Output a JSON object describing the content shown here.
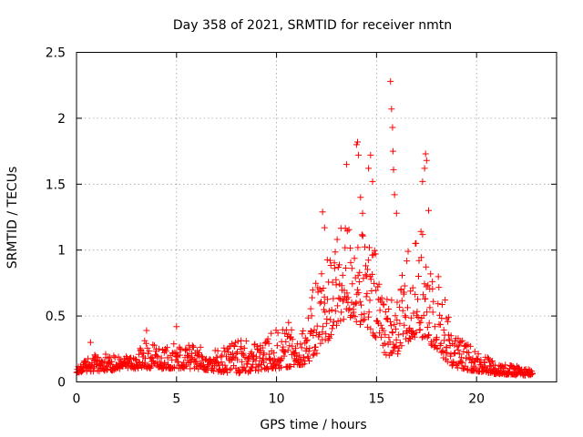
{
  "chart_data": {
    "type": "scatter",
    "title": "Day 358 of 2021, SRMTID for receiver nmtn",
    "xlabel": "GPS time / hours",
    "ylabel": "SRMTID / TECUs",
    "xlim": [
      0,
      24
    ],
    "ylim": [
      0,
      2.5
    ],
    "xticks": [
      0,
      5,
      10,
      15,
      20
    ],
    "xtick_labels": [
      "0",
      "5",
      "10",
      "15",
      "20"
    ],
    "yticks": [
      0,
      0.5,
      1,
      1.5,
      2,
      2.5
    ],
    "ytick_labels": [
      "0",
      "0.5",
      "1",
      "1.5",
      "2",
      "2.5"
    ],
    "grid": true,
    "marker": "+",
    "color": "#ff0000",
    "series": [
      {
        "name": "SRMTID",
        "envelope": {
          "x": [
            0,
            1,
            2,
            3,
            3.5,
            4,
            5,
            6,
            7,
            8,
            9,
            10,
            11,
            11.5,
            12,
            12.5,
            13,
            13.5,
            14,
            14.5,
            15,
            15.5,
            16,
            16.5,
            17,
            17.5,
            18,
            18.5,
            19,
            20,
            21,
            22,
            22.8
          ],
          "low": [
            0.07,
            0.08,
            0.09,
            0.1,
            0.1,
            0.1,
            0.1,
            0.1,
            0.08,
            0.06,
            0.08,
            0.1,
            0.12,
            0.14,
            0.2,
            0.3,
            0.4,
            0.5,
            0.45,
            0.4,
            0.3,
            0.2,
            0.2,
            0.3,
            0.35,
            0.3,
            0.25,
            0.15,
            0.1,
            0.08,
            0.06,
            0.05,
            0.05
          ],
          "high": [
            0.12,
            0.22,
            0.2,
            0.2,
            0.38,
            0.25,
            0.3,
            0.28,
            0.25,
            0.32,
            0.3,
            0.4,
            0.4,
            0.45,
            0.85,
            1.0,
            1.1,
            1.25,
            1.2,
            1.1,
            1.0,
            0.7,
            0.6,
            1.0,
            1.2,
            1.1,
            0.9,
            0.6,
            0.35,
            0.25,
            0.15,
            0.12,
            0.1
          ]
        },
        "outliers": {
          "x": [
            0.7,
            3.5,
            5.0,
            10.6,
            12.3,
            12.4,
            13.5,
            14.0,
            14.05,
            14.1,
            14.2,
            14.3,
            14.6,
            14.7,
            14.8,
            15.7,
            15.75,
            15.8,
            15.82,
            15.85,
            15.9,
            16.0,
            17.3,
            17.4,
            17.45,
            17.5,
            17.6,
            18.5
          ],
          "y": [
            0.3,
            0.39,
            0.42,
            0.45,
            1.29,
            1.17,
            1.65,
            1.8,
            1.82,
            1.72,
            1.4,
            1.28,
            1.62,
            1.72,
            1.52,
            2.28,
            2.07,
            1.93,
            1.75,
            1.61,
            1.42,
            1.28,
            1.52,
            1.62,
            1.73,
            1.68,
            1.3,
            0.48
          ]
        },
        "n_points": 1100
      }
    ]
  }
}
